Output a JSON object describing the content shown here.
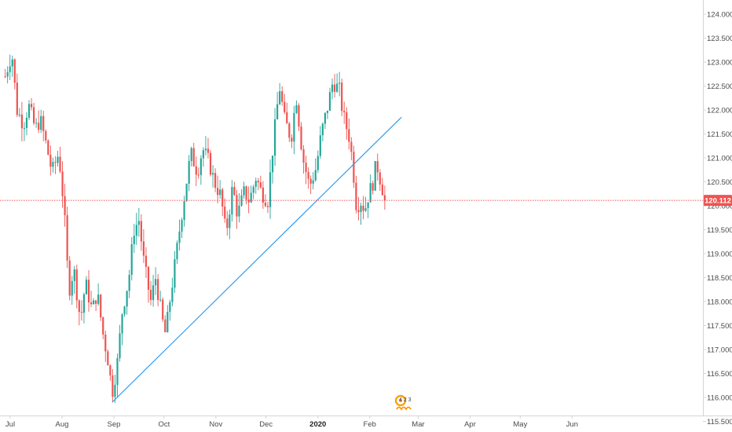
{
  "chart_data": {
    "type": "candlestick",
    "title": "",
    "y_axis": {
      "position": "right",
      "range": [
        115.3,
        124.3
      ],
      "ticks": [
        "115.500",
        "116.000",
        "116.500",
        "117.000",
        "117.500",
        "118.000",
        "118.500",
        "119.000",
        "119.500",
        "120.000",
        "120.500",
        "121.000",
        "121.500",
        "122.000",
        "122.500",
        "123.000",
        "123.500",
        "124.000"
      ],
      "tick_values": [
        115.5,
        116.0,
        116.5,
        117.0,
        117.5,
        118.0,
        118.5,
        119.0,
        119.5,
        120.0,
        120.5,
        121.0,
        121.5,
        122.0,
        122.5,
        123.0,
        123.5,
        124.0
      ]
    },
    "x_axis": {
      "labels": [
        {
          "text": "Jul",
          "date": "2019-07-01",
          "bold": false
        },
        {
          "text": "Aug",
          "date": "2019-08-01",
          "bold": false
        },
        {
          "text": "Sep",
          "date": "2019-09-01",
          "bold": false
        },
        {
          "text": "Oct",
          "date": "2019-10-01",
          "bold": false
        },
        {
          "text": "Nov",
          "date": "2019-11-01",
          "bold": false
        },
        {
          "text": "Dec",
          "date": "2019-12-01",
          "bold": false
        },
        {
          "text": "2020",
          "date": "2020-01-01",
          "bold": true
        },
        {
          "text": "Feb",
          "date": "2020-02-01",
          "bold": false
        },
        {
          "text": "Mar",
          "date": "2020-03-01",
          "bold": false
        },
        {
          "text": "Apr",
          "date": "2020-04-01",
          "bold": false
        },
        {
          "text": "May",
          "date": "2020-05-01",
          "bold": false
        },
        {
          "text": "Jun",
          "date": "2020-06-01",
          "bold": false
        }
      ]
    },
    "colors": {
      "up": "#26a69a",
      "down": "#ef5350",
      "trendline": "#2196f3",
      "price_line": "#ef5350",
      "price_tag": "#ef5350",
      "grid": "#f0f3fa",
      "axis_border": "#d1d4dc"
    },
    "grid": false,
    "last_price": {
      "value": 120.112,
      "label": "120.112"
    },
    "trendline": {
      "start": {
        "date": "2019-08-31",
        "price": 115.9
      },
      "end": {
        "date": "2020-02-20",
        "price": 121.85
      }
    },
    "price_path": [
      [
        "2019-06-28",
        122.7
      ],
      [
        "2019-07-02",
        123.2
      ],
      [
        "2019-07-05",
        122.0
      ],
      [
        "2019-07-09",
        121.7
      ],
      [
        "2019-07-12",
        122.1
      ],
      [
        "2019-07-16",
        121.6
      ],
      [
        "2019-07-19",
        121.8
      ],
      [
        "2019-07-23",
        121.2
      ],
      [
        "2019-07-26",
        120.7
      ],
      [
        "2019-07-30",
        121.1
      ],
      [
        "2019-08-01",
        120.4
      ],
      [
        "2019-08-03",
        119.5
      ],
      [
        "2019-08-05",
        118.2
      ],
      [
        "2019-08-08",
        118.7
      ],
      [
        "2019-08-12",
        117.6
      ],
      [
        "2019-08-15",
        118.4
      ],
      [
        "2019-08-19",
        117.8
      ],
      [
        "2019-08-22",
        118.2
      ],
      [
        "2019-08-26",
        117.2
      ],
      [
        "2019-08-28",
        116.9
      ],
      [
        "2019-08-31",
        116.1
      ],
      [
        "2019-09-03",
        116.7
      ],
      [
        "2019-09-06",
        117.8
      ],
      [
        "2019-09-10",
        118.5
      ],
      [
        "2019-09-13",
        119.5
      ],
      [
        "2019-09-16",
        119.7
      ],
      [
        "2019-09-19",
        118.8
      ],
      [
        "2019-09-23",
        118.0
      ],
      [
        "2019-09-26",
        118.5
      ],
      [
        "2019-09-30",
        117.6
      ],
      [
        "2019-10-02",
        117.3
      ],
      [
        "2019-10-04",
        117.9
      ],
      [
        "2019-10-08",
        118.9
      ],
      [
        "2019-10-11",
        119.7
      ],
      [
        "2019-10-14",
        120.4
      ],
      [
        "2019-10-17",
        121.1
      ],
      [
        "2019-10-21",
        120.7
      ],
      [
        "2019-10-24",
        121.2
      ],
      [
        "2019-10-28",
        120.9
      ],
      [
        "2019-10-31",
        120.5
      ],
      [
        "2019-11-04",
        120.2
      ],
      [
        "2019-11-07",
        119.4
      ],
      [
        "2019-11-11",
        120.4
      ],
      [
        "2019-11-14",
        119.8
      ],
      [
        "2019-11-18",
        120.3
      ],
      [
        "2019-11-21",
        120.1
      ],
      [
        "2019-11-25",
        120.6
      ],
      [
        "2019-11-28",
        120.3
      ],
      [
        "2019-12-02",
        120.1
      ],
      [
        "2019-12-05",
        121.2
      ],
      [
        "2019-12-09",
        122.5
      ],
      [
        "2019-12-12",
        121.8
      ],
      [
        "2019-12-16",
        121.4
      ],
      [
        "2019-12-19",
        122.3
      ],
      [
        "2019-12-23",
        121.0
      ],
      [
        "2019-12-27",
        120.4
      ],
      [
        "2019-12-31",
        120.8
      ],
      [
        "2020-01-03",
        121.5
      ],
      [
        "2020-01-07",
        122.1
      ],
      [
        "2020-01-10",
        122.6
      ],
      [
        "2020-01-14",
        122.4
      ],
      [
        "2020-01-16",
        121.9
      ],
      [
        "2020-01-20",
        121.4
      ],
      [
        "2020-01-22",
        120.8
      ],
      [
        "2020-01-24",
        120.0
      ],
      [
        "2020-01-27",
        120.1
      ],
      [
        "2020-01-29",
        119.9
      ],
      [
        "2020-01-31",
        120.2
      ],
      [
        "2020-02-03",
        120.5
      ],
      [
        "2020-02-05",
        120.9
      ],
      [
        "2020-02-07",
        120.6
      ],
      [
        "2020-02-09",
        120.3
      ],
      [
        "2020-02-10",
        120.112
      ]
    ],
    "candle_count": 160,
    "annotations": [
      {
        "type": "events",
        "text": "4 2 3"
      }
    ]
  }
}
